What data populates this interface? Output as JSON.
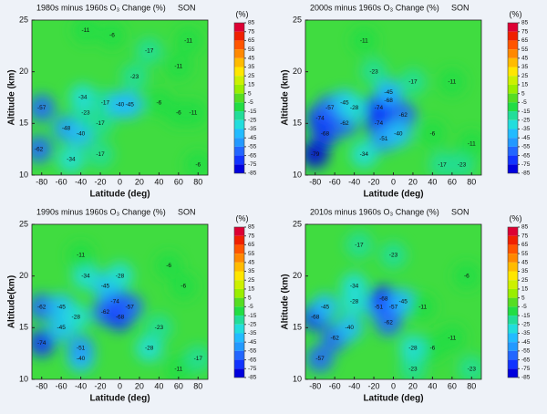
{
  "chart_data": [
    {
      "type": "contour",
      "title": "1980s minus 1960s O₃ Change (%)",
      "season": "SON",
      "xlabel": "Latitude (deg)",
      "ylabel": "Altitude (km)",
      "colorbar_label": "(%)",
      "xlim": [
        -90,
        90
      ],
      "xticks": [
        -80,
        -60,
        -40,
        -20,
        0,
        20,
        40,
        60,
        80
      ],
      "ylim": [
        10,
        25
      ],
      "yticks": [
        10,
        15,
        20,
        25
      ],
      "clim": [
        -85,
        85
      ],
      "cticks": [
        85,
        75,
        65,
        55,
        45,
        35,
        25,
        15,
        5,
        -5,
        -15,
        -25,
        -35,
        -45,
        -55,
        -65,
        -75,
        -85
      ],
      "colors": [
        "#dd0033",
        "#f02000",
        "#ff5500",
        "#ff8800",
        "#ffbb00",
        "#ffe600",
        "#ccf000",
        "#99ee00",
        "#55dd22",
        "#22dd44",
        "#22dd99",
        "#22dddd",
        "#22bbff",
        "#2299ff",
        "#2266ff",
        "#1133ff",
        "#0000dd"
      ],
      "x": [
        -80,
        -55,
        -40,
        -50,
        -83,
        -35,
        -38,
        -15,
        0,
        10,
        -20,
        -20,
        -35,
        -8,
        15,
        30,
        40,
        60,
        60,
        75,
        80,
        70
      ],
      "y": [
        16.5,
        14.5,
        14,
        11.5,
        12.5,
        16,
        17.5,
        17,
        16.8,
        16.8,
        15,
        12,
        24,
        23.5,
        19.5,
        22,
        17,
        20.5,
        16,
        16,
        11,
        23
      ],
      "values": [
        -57,
        -48,
        -40,
        -34,
        -62,
        -23,
        -34,
        -17,
        -40,
        -45,
        -17,
        -17,
        -11,
        -6,
        -23,
        -17,
        -6,
        -11,
        -6,
        -11,
        -6,
        -11
      ]
    },
    {
      "type": "contour",
      "title": "2000s minus 1960s O₃ Change (%)",
      "season": "SON",
      "xlabel": "Latitude (deg)",
      "ylabel": "Altitude (km)",
      "colorbar_label": "(%)",
      "xlim": [
        -90,
        90
      ],
      "xticks": [
        -80,
        -60,
        -40,
        -20,
        0,
        20,
        40,
        60,
        80
      ],
      "ylim": [
        10,
        25
      ],
      "yticks": [
        10,
        15,
        20,
        25
      ],
      "clim": [
        -85,
        85
      ],
      "cticks": [
        85,
        75,
        65,
        55,
        45,
        35,
        25,
        15,
        5,
        -5,
        -15,
        -25,
        -35,
        -45,
        -55,
        -65,
        -75,
        -85
      ],
      "colors": [
        "#dd0033",
        "#f02000",
        "#ff5500",
        "#ff8800",
        "#ffbb00",
        "#ffe600",
        "#ccf000",
        "#99ee00",
        "#55dd22",
        "#22dd44",
        "#22dd99",
        "#22dddd",
        "#22bbff",
        "#2299ff",
        "#2266ff",
        "#1133ff",
        "#0000dd"
      ],
      "x": [
        -75,
        -70,
        -80,
        -65,
        -50,
        -50,
        -40,
        -30,
        -15,
        -5,
        10,
        -15,
        -10,
        5,
        -30,
        -20,
        20,
        -5,
        40,
        50,
        70,
        60,
        80
      ],
      "y": [
        15.5,
        14,
        12,
        16.5,
        15,
        17,
        16.5,
        12,
        16.5,
        17.2,
        15.8,
        15,
        13.5,
        14,
        23,
        20,
        19,
        18,
        14,
        11,
        11,
        19,
        13
      ],
      "values": [
        -74,
        -68,
        -79,
        -57,
        -62,
        -45,
        -28,
        -34,
        -74,
        -68,
        -62,
        -74,
        -51,
        -40,
        -11,
        -23,
        -17,
        -45,
        -6,
        -17,
        -23,
        -11,
        -11
      ]
    },
    {
      "type": "contour",
      "title": "1990s minus 1960s O₃ Change (%)",
      "season": "SON",
      "xlabel": "Latitude (deg)",
      "ylabel": "Altitude(km)",
      "colorbar_label": "(%)",
      "xlim": [
        -90,
        90
      ],
      "xticks": [
        -80,
        -60,
        -40,
        -20,
        0,
        20,
        40,
        60,
        80
      ],
      "ylim": [
        10,
        25
      ],
      "yticks": [
        10,
        15,
        20,
        25
      ],
      "clim": [
        -85,
        85
      ],
      "cticks": [
        85,
        75,
        65,
        55,
        45,
        35,
        25,
        15,
        5,
        -5,
        -15,
        -25,
        -35,
        -45,
        -55,
        -65,
        -75,
        -85
      ],
      "colors": [
        "#dd0033",
        "#f02000",
        "#ff5500",
        "#ff8800",
        "#ffbb00",
        "#ffe600",
        "#ccf000",
        "#99ee00",
        "#55dd22",
        "#22dd44",
        "#22dd99",
        "#22dddd",
        "#22bbff",
        "#2299ff",
        "#2266ff",
        "#1133ff",
        "#0000dd"
      ],
      "x": [
        -80,
        -80,
        -60,
        -60,
        -45,
        -40,
        -40,
        -5,
        -15,
        0,
        10,
        -15,
        -35,
        -40,
        30,
        40,
        60,
        80,
        65,
        50,
        0
      ],
      "y": [
        13.5,
        17,
        15,
        17,
        16,
        12,
        13,
        17.5,
        16.5,
        16,
        17,
        19,
        20,
        22,
        13,
        15,
        11,
        12,
        19,
        21,
        20
      ],
      "values": [
        -74,
        -62,
        -45,
        -45,
        -28,
        -40,
        -51,
        -74,
        -62,
        -68,
        -57,
        -45,
        -34,
        -11,
        -28,
        -23,
        -11,
        -17,
        -6,
        -6,
        -28
      ]
    },
    {
      "type": "contour",
      "title": "2010s minus 1960s O₃ Change (%)",
      "season": "SON",
      "xlabel": "Latitude (deg)",
      "ylabel": "Altitude (km)",
      "colorbar_label": "(%)",
      "xlim": [
        -90,
        90
      ],
      "xticks": [
        -80,
        -60,
        -40,
        -20,
        0,
        20,
        40,
        60,
        80
      ],
      "ylim": [
        10,
        25
      ],
      "yticks": [
        10,
        15,
        20,
        25
      ],
      "clim": [
        -85,
        85
      ],
      "cticks": [
        85,
        75,
        65,
        55,
        45,
        35,
        25,
        15,
        5,
        -5,
        -15,
        -25,
        -35,
        -45,
        -55,
        -65,
        -75,
        -85
      ],
      "colors": [
        "#dd0033",
        "#f02000",
        "#ff5500",
        "#ff8800",
        "#ffbb00",
        "#ffe600",
        "#ccf000",
        "#99ee00",
        "#55dd22",
        "#22dd44",
        "#22dd99",
        "#22dddd",
        "#22bbff",
        "#2299ff",
        "#2266ff",
        "#1133ff",
        "#0000dd"
      ],
      "x": [
        -80,
        -70,
        -60,
        -75,
        -45,
        -40,
        -40,
        -15,
        -10,
        0,
        -5,
        10,
        30,
        40,
        20,
        20,
        -35,
        0,
        60,
        80,
        75
      ],
      "y": [
        16,
        17,
        14,
        12,
        15,
        17.5,
        19,
        17,
        17.8,
        17,
        15.5,
        17.5,
        17,
        13,
        11,
        13,
        23,
        22,
        14,
        11,
        20
      ],
      "values": [
        -68,
        -45,
        -62,
        -57,
        -40,
        -28,
        -34,
        -51,
        -68,
        -57,
        -62,
        -45,
        -11,
        -6,
        -23,
        -28,
        -17,
        -23,
        -11,
        -23,
        -6
      ]
    }
  ]
}
